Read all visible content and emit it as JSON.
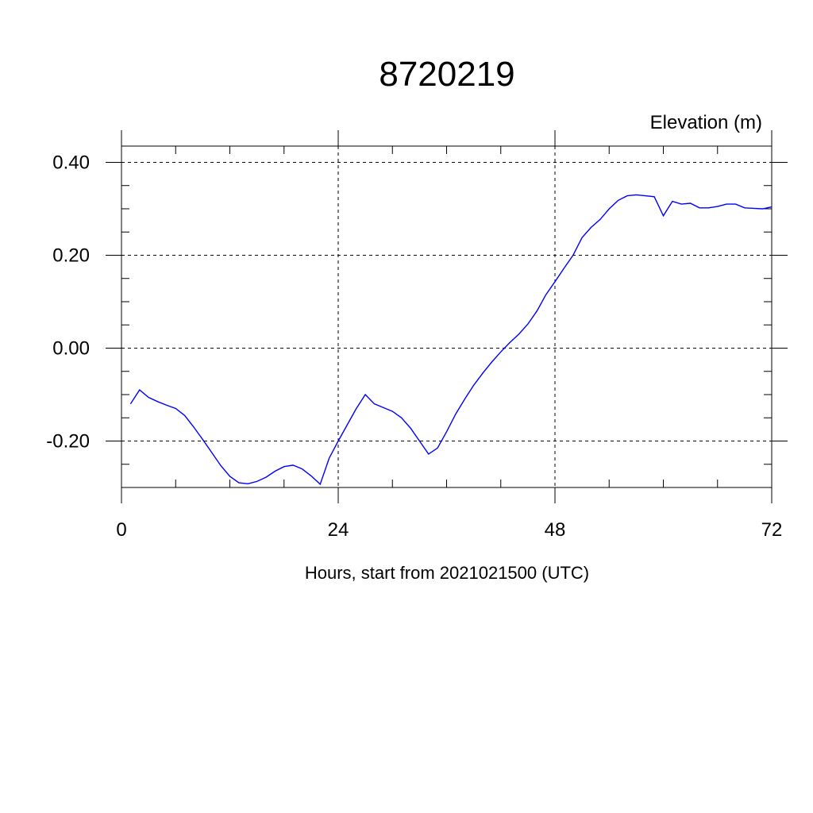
{
  "chart_data": {
    "type": "line",
    "title": "8720219",
    "ylabel": "Elevation (m)",
    "xlabel": "Hours, start from 2021021500 (UTC)",
    "xlim": [
      0,
      72
    ],
    "ylim": [
      -0.3,
      0.435
    ],
    "x_ticks": [
      {
        "value": 0,
        "label": "0"
      },
      {
        "value": 24,
        "label": "24"
      },
      {
        "value": 48,
        "label": "48"
      },
      {
        "value": 72,
        "label": "72"
      }
    ],
    "y_ticks": [
      {
        "value": 0.4,
        "label": "0.40"
      },
      {
        "value": 0.2,
        "label": "0.20"
      },
      {
        "value": 0.0,
        "label": "0.00"
      },
      {
        "value": -0.2,
        "label": "-0.20"
      }
    ],
    "grid": true,
    "series": [
      {
        "color": "#0000ff",
        "x": [
          1,
          2,
          3,
          4,
          5,
          6,
          7,
          8,
          9,
          10,
          11,
          12,
          13,
          14,
          15,
          16,
          17,
          18,
          19,
          20,
          21,
          22,
          23,
          24,
          25,
          26,
          27,
          28,
          29,
          30,
          31,
          32,
          33,
          34,
          35,
          36,
          37,
          38,
          39,
          40,
          41,
          42,
          43,
          44,
          45,
          46,
          47,
          48,
          49,
          50,
          51,
          52,
          53,
          54,
          55,
          56,
          57,
          58,
          59,
          60,
          61,
          62,
          63,
          64,
          65,
          66,
          67,
          68,
          69,
          70,
          71,
          72
        ],
        "y": [
          -0.12,
          -0.09,
          -0.106,
          -0.115,
          -0.123,
          -0.13,
          -0.145,
          -0.17,
          -0.197,
          -0.225,
          -0.253,
          -0.276,
          -0.29,
          -0.292,
          -0.287,
          -0.278,
          -0.265,
          -0.255,
          -0.252,
          -0.26,
          -0.275,
          -0.293,
          -0.237,
          -0.2,
          -0.165,
          -0.13,
          -0.1,
          -0.12,
          -0.128,
          -0.136,
          -0.15,
          -0.172,
          -0.2,
          -0.228,
          -0.215,
          -0.18,
          -0.142,
          -0.11,
          -0.08,
          -0.054,
          -0.03,
          -0.008,
          0.012,
          0.03,
          0.052,
          0.08,
          0.115,
          0.143,
          0.172,
          0.2,
          0.238,
          0.26,
          0.277,
          0.3,
          0.318,
          0.328,
          0.33,
          0.328,
          0.326,
          0.285,
          0.316,
          0.31,
          0.312,
          0.302,
          0.302,
          0.305,
          0.31,
          0.31,
          0.302,
          0.301,
          0.3,
          0.304
        ]
      }
    ]
  }
}
